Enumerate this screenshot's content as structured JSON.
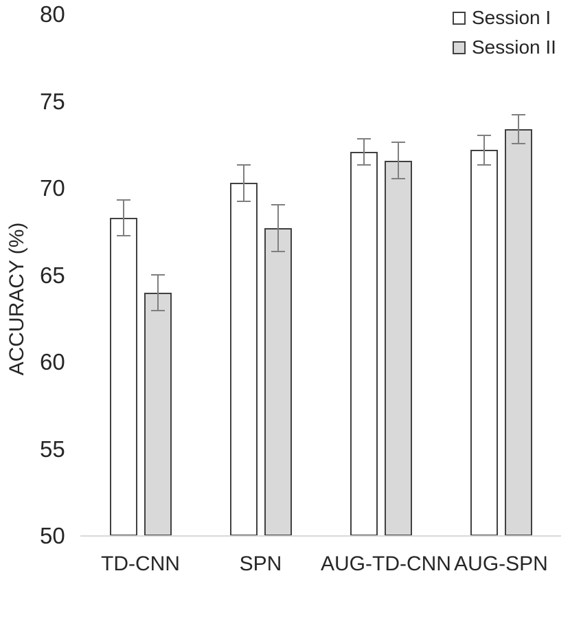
{
  "chart_data": {
    "type": "bar",
    "title": "",
    "categories": [
      "TD-CNN",
      "SPN",
      "AUG-TD-CNN",
      "AUG-SPN"
    ],
    "series": [
      {
        "name": "Session I",
        "fill": "#ffffff",
        "values": [
          68.3,
          70.3,
          72.1,
          72.2
        ],
        "errors": [
          1.0,
          1.0,
          0.7,
          0.8
        ]
      },
      {
        "name": "Session II",
        "fill": "#d9d9d9",
        "values": [
          64.0,
          67.7,
          71.6,
          73.4
        ],
        "errors": [
          1.0,
          1.3,
          1.0,
          0.8
        ]
      }
    ],
    "xlabel": "",
    "ylabel": "ACCURACY (%)",
    "ylim": [
      50,
      80
    ],
    "yticks": [
      80,
      75,
      70,
      65,
      60,
      55,
      50
    ],
    "grid": false,
    "error_bars": true,
    "legend_position": "top-right"
  },
  "legend": {
    "items": [
      {
        "label": "Session I",
        "swatch": "#ffffff"
      },
      {
        "label": "Session II",
        "swatch": "#d9d9d9"
      }
    ]
  },
  "colors": {
    "background": "#ffffff",
    "text": "#262626",
    "bar_border": "#404040",
    "error_bar": "#7f7f7f",
    "axis_line": "#d9d9d9",
    "session1_fill": "#ffffff",
    "session2_fill": "#d9d9d9"
  }
}
